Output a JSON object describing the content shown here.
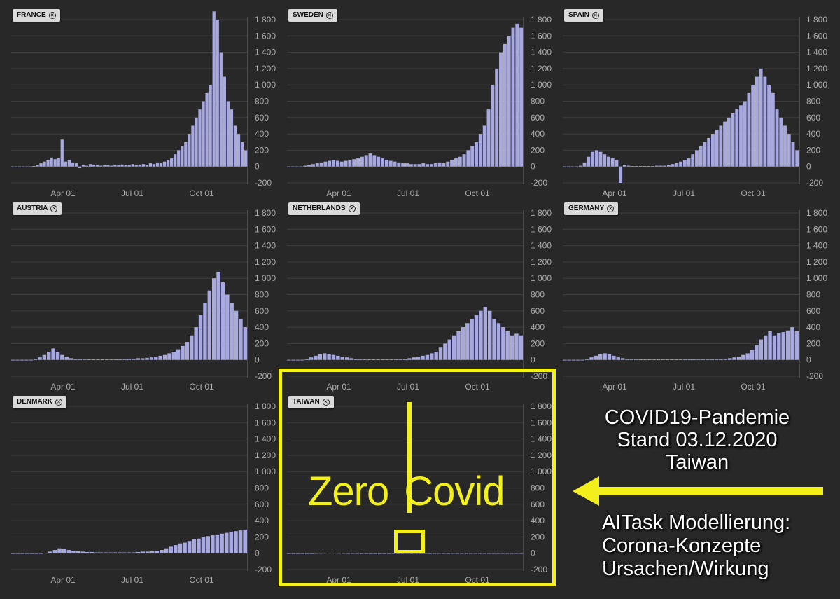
{
  "chart_data": [
    {
      "type": "bar",
      "country": "FRANCE",
      "ylim": [
        -200,
        1800
      ],
      "yticks": [
        "1 800",
        "1 600",
        "1 400",
        "1 200",
        "1 000",
        "800",
        "600",
        "400",
        "200",
        "0",
        "-200"
      ],
      "xticks": [
        "Apr 01",
        "Jul 01",
        "Oct 01"
      ],
      "series": [
        {
          "values": [
            0,
            0,
            0,
            0,
            0,
            0,
            5,
            20,
            40,
            60,
            80,
            110,
            90,
            100,
            330,
            60,
            80,
            50,
            40,
            -20,
            20,
            10,
            30,
            15,
            20,
            10,
            15,
            20,
            10,
            15,
            20,
            25,
            15,
            20,
            30,
            20,
            25,
            30,
            20,
            40,
            30,
            50,
            40,
            60,
            80,
            100,
            150,
            200,
            250,
            300,
            400,
            500,
            600,
            700,
            800,
            900,
            1000,
            1900,
            1800,
            1400,
            1100,
            800,
            700,
            500,
            400,
            300,
            200
          ]
        }
      ]
    },
    {
      "type": "bar",
      "country": "SWEDEN",
      "ylim": [
        -200,
        1800
      ],
      "yticks": [
        "1 800",
        "1 600",
        "1 400",
        "1 200",
        "1 000",
        "800",
        "600",
        "400",
        "200",
        "0",
        "-200"
      ],
      "xticks": [
        "Apr 01",
        "Jul 01",
        "Oct 01"
      ],
      "series": [
        {
          "values": [
            0,
            0,
            0,
            0,
            10,
            20,
            30,
            40,
            50,
            60,
            70,
            80,
            70,
            60,
            70,
            80,
            90,
            100,
            120,
            140,
            160,
            140,
            120,
            100,
            80,
            70,
            60,
            50,
            40,
            40,
            30,
            30,
            30,
            40,
            30,
            30,
            40,
            50,
            40,
            60,
            80,
            100,
            120,
            150,
            200,
            250,
            300,
            400,
            500,
            700,
            1000,
            1200,
            1400,
            1500,
            1600,
            1700,
            1750,
            1700
          ]
        }
      ]
    },
    {
      "type": "bar",
      "country": "SPAIN",
      "ylim": [
        -200,
        1800
      ],
      "yticks": [
        "1 800",
        "1 600",
        "1 400",
        "1 200",
        "1 000",
        "800",
        "600",
        "400",
        "200",
        "0",
        "-200"
      ],
      "xticks": [
        "Apr 01",
        "Jul 01",
        "Oct 01"
      ],
      "series": [
        {
          "values": [
            0,
            0,
            0,
            0,
            10,
            50,
            120,
            180,
            200,
            180,
            150,
            120,
            100,
            80,
            -200,
            20,
            10,
            5,
            5,
            5,
            5,
            5,
            5,
            10,
            10,
            10,
            20,
            30,
            40,
            60,
            80,
            100,
            150,
            200,
            250,
            300,
            350,
            400,
            450,
            500,
            550,
            600,
            650,
            700,
            750,
            800,
            900,
            1000,
            1100,
            1200,
            1100,
            1000,
            900,
            700,
            600,
            500,
            400,
            300,
            200
          ]
        }
      ]
    },
    {
      "type": "bar",
      "country": "AUSTRIA",
      "ylim": [
        -200,
        1800
      ],
      "yticks": [
        "1 800",
        "1 600",
        "1 400",
        "1 200",
        "1 000",
        "800",
        "600",
        "400",
        "200",
        "0",
        "-200"
      ],
      "xticks": [
        "Apr 01",
        "Jul 01",
        "Oct 01"
      ],
      "series": [
        {
          "values": [
            0,
            0,
            0,
            0,
            0,
            10,
            30,
            60,
            100,
            140,
            100,
            60,
            40,
            20,
            10,
            10,
            10,
            5,
            5,
            5,
            5,
            5,
            5,
            5,
            10,
            10,
            15,
            15,
            20,
            20,
            25,
            30,
            40,
            50,
            60,
            80,
            100,
            130,
            170,
            220,
            300,
            400,
            550,
            700,
            850,
            1000,
            1080,
            950,
            800,
            700,
            600,
            500,
            400
          ]
        }
      ]
    },
    {
      "type": "bar",
      "country": "NETHERLANDS",
      "ylim": [
        -200,
        1800
      ],
      "yticks": [
        "1 800",
        "1 600",
        "1 400",
        "1 200",
        "1 000",
        "800",
        "600",
        "400",
        "200",
        "0",
        "-200"
      ],
      "xticks": [
        "Apr 01",
        "Jul 01",
        "Oct 01"
      ],
      "series": [
        {
          "values": [
            0,
            0,
            0,
            0,
            10,
            30,
            50,
            70,
            80,
            70,
            60,
            50,
            40,
            30,
            20,
            10,
            10,
            10,
            5,
            5,
            5,
            5,
            5,
            5,
            10,
            10,
            10,
            20,
            30,
            40,
            50,
            60,
            80,
            100,
            150,
            200,
            250,
            300,
            350,
            400,
            450,
            500,
            550,
            600,
            650,
            600,
            500,
            450,
            400,
            350,
            300,
            320,
            300
          ]
        }
      ]
    },
    {
      "type": "bar",
      "country": "GERMANY",
      "ylim": [
        -200,
        1800
      ],
      "yticks": [
        "1 800",
        "1 600",
        "1 400",
        "1 200",
        "1 000",
        "800",
        "600",
        "400",
        "200",
        "0",
        "-200"
      ],
      "xticks": [
        "Apr 01",
        "Jul 01",
        "Oct 01"
      ],
      "series": [
        {
          "values": [
            0,
            0,
            0,
            0,
            0,
            10,
            30,
            50,
            70,
            80,
            70,
            50,
            30,
            20,
            10,
            10,
            10,
            5,
            5,
            5,
            5,
            5,
            5,
            5,
            5,
            5,
            5,
            10,
            10,
            10,
            10,
            10,
            10,
            10,
            10,
            10,
            15,
            20,
            30,
            40,
            60,
            80,
            120,
            180,
            250,
            300,
            350,
            300,
            330,
            340,
            360,
            400,
            350
          ]
        }
      ]
    },
    {
      "type": "bar",
      "country": "DENMARK",
      "ylim": [
        -200,
        1800
      ],
      "yticks": [
        "1 800",
        "1 600",
        "1 400",
        "1 200",
        "1 000",
        "800",
        "600",
        "400",
        "200",
        "0",
        "-200"
      ],
      "xticks": [
        "Apr 01",
        "Jul 01",
        "Oct 01"
      ],
      "series": [
        {
          "values": [
            0,
            0,
            0,
            0,
            0,
            0,
            0,
            5,
            20,
            40,
            60,
            50,
            40,
            30,
            25,
            20,
            15,
            15,
            10,
            10,
            10,
            10,
            10,
            10,
            10,
            10,
            10,
            15,
            20,
            20,
            25,
            30,
            40,
            60,
            80,
            100,
            120,
            130,
            150,
            170,
            180,
            200,
            210,
            220,
            230,
            240,
            250,
            260,
            270,
            280,
            290
          ]
        }
      ]
    },
    {
      "type": "bar",
      "country": "TAIWAN",
      "ylim": [
        -200,
        1800
      ],
      "yticks": [
        "1 800",
        "1 600",
        "1 400",
        "1 200",
        "1 000",
        "800",
        "600",
        "400",
        "200",
        "0",
        "-200"
      ],
      "xticks": [
        "Apr 01",
        "Jul 01",
        "Oct 01"
      ],
      "series": [
        {
          "values": [
            0,
            0,
            0,
            0,
            0,
            0,
            2,
            3,
            4,
            5,
            4,
            3,
            2,
            1,
            1,
            1,
            0,
            0,
            0,
            0,
            0,
            0,
            0,
            0,
            0,
            0,
            1,
            0,
            1,
            0,
            1,
            0,
            1,
            1,
            1,
            0,
            1,
            1,
            1,
            1,
            1,
            1,
            1,
            1,
            1,
            1,
            1,
            1,
            1,
            1,
            1,
            1
          ]
        }
      ]
    }
  ],
  "overlay": {
    "zero": "Zero",
    "covid": "Covid",
    "accent": "#f2ef1a"
  },
  "caption": {
    "line1": "COVID19-Pandemie",
    "line2": "Stand 03.12.2020",
    "line3": "Taiwan",
    "line4": "AITask Modellierung:",
    "line5": "Corona-Konzepte",
    "line6": "Ursachen/Wirkung"
  },
  "bar_color": "#a7a9e0"
}
